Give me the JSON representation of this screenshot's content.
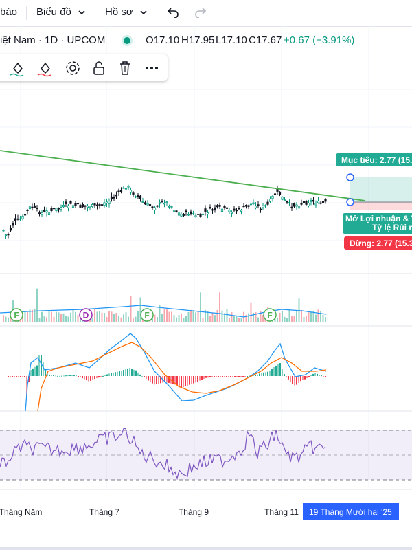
{
  "topbar": {
    "alerts_label": "báo",
    "chart_menu_label": "Biểu đồ",
    "profile_menu_label": "Hồ sơ"
  },
  "legend": {
    "symbol": "iệt Nam · 1D · UPCOM",
    "open": "O17.10",
    "high": "H17.95",
    "low": "L17.10",
    "close": "C17.67",
    "change": "+0.67 (+3.91%)",
    "change_color": "#089981"
  },
  "position_tool": {
    "target_label": "Mục tiêu: 2.77 (15.",
    "open_pnl_label": "Mở Lợi nhuận & T",
    "risk_ratio_label": "Tỷ lệ Rủi r",
    "stop_label": "Dừng: 2.77 (15.3",
    "target_color": "#22ab94",
    "stop_color": "#f23645"
  },
  "chart_data": {
    "type": "candlestick",
    "title": "",
    "x_axis_labels": [
      "Tháng Năm",
      "Tháng 7",
      "Tháng 9",
      "Tháng 11"
    ],
    "crosshair_date_label": "19 Tháng Mười hai '25",
    "last_bar": {
      "open": 17.1,
      "high": 17.95,
      "low": 17.1,
      "close": 17.67
    },
    "trendline": {
      "color": "#4caf50"
    },
    "event_markers": [
      "F",
      "D",
      "F",
      "F"
    ],
    "panes": [
      "price",
      "volume",
      "macd",
      "rsi"
    ],
    "colors": {
      "up": "#089981",
      "down": "#f23645",
      "macd": "#2196f3",
      "signal": "#ff6d00",
      "rsi": "#7e57c2"
    }
  }
}
